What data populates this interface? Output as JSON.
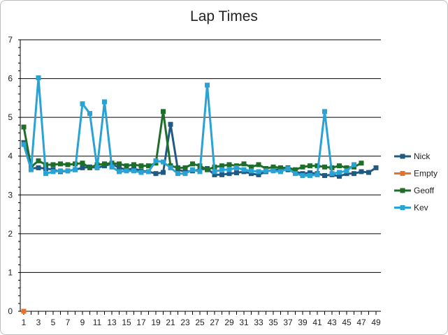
{
  "chart_data": {
    "type": "line",
    "title": "Lap Times",
    "xlabel": "",
    "ylabel": "",
    "ylim": [
      0,
      7
    ],
    "yticks": [
      0,
      1,
      2,
      3,
      4,
      5,
      6,
      7
    ],
    "xlim": [
      1,
      49
    ],
    "xticks": [
      1,
      3,
      5,
      7,
      9,
      11,
      13,
      15,
      17,
      19,
      21,
      23,
      25,
      27,
      29,
      31,
      33,
      35,
      37,
      39,
      41,
      43,
      45,
      47,
      49
    ],
    "grid": "horizontal",
    "legend": "right",
    "series": [
      {
        "name": "Nick",
        "color": "#1f5a82",
        "x": [
          1,
          2,
          3,
          4,
          5,
          6,
          7,
          8,
          9,
          10,
          11,
          12,
          13,
          14,
          15,
          16,
          17,
          18,
          19,
          20,
          21,
          22,
          23,
          24,
          25,
          26,
          27,
          28,
          29,
          30,
          31,
          32,
          33,
          34,
          35,
          36,
          37,
          38,
          39,
          40,
          41,
          42,
          43,
          44,
          45,
          46,
          47,
          48,
          49
        ],
        "y": [
          4.35,
          3.68,
          3.7,
          3.68,
          3.65,
          3.6,
          3.62,
          3.65,
          3.7,
          3.72,
          3.7,
          3.75,
          3.8,
          3.7,
          3.65,
          3.68,
          3.62,
          3.6,
          3.55,
          3.58,
          4.82,
          3.65,
          3.6,
          3.62,
          3.65,
          3.68,
          3.52,
          3.52,
          3.55,
          3.57,
          3.6,
          3.55,
          3.52,
          3.6,
          3.65,
          3.65,
          3.65,
          3.6,
          3.55,
          3.57,
          3.55,
          3.5,
          3.52,
          3.48,
          3.55,
          3.55,
          3.6,
          3.58,
          3.7
        ]
      },
      {
        "name": "Empty",
        "color": "#e8722a",
        "x": [
          1
        ],
        "y": [
          0
        ]
      },
      {
        "name": "Geoff",
        "color": "#1e6e2a",
        "x": [
          1,
          2,
          3,
          4,
          5,
          6,
          7,
          8,
          9,
          10,
          11,
          12,
          13,
          14,
          15,
          16,
          17,
          18,
          19,
          20,
          21,
          22,
          23,
          24,
          25,
          26,
          27,
          28,
          29,
          30,
          31,
          32,
          33,
          34,
          35,
          36,
          37,
          38,
          39,
          40,
          41,
          42,
          43,
          44,
          45,
          46,
          47
        ],
        "y": [
          4.75,
          3.72,
          3.88,
          3.78,
          3.78,
          3.8,
          3.78,
          3.8,
          3.82,
          3.7,
          3.78,
          3.8,
          3.82,
          3.8,
          3.75,
          3.78,
          3.75,
          3.75,
          3.82,
          5.15,
          3.75,
          3.7,
          3.7,
          3.8,
          3.75,
          3.65,
          3.72,
          3.75,
          3.78,
          3.75,
          3.8,
          3.72,
          3.78,
          3.68,
          3.72,
          3.7,
          3.7,
          3.65,
          3.72,
          3.75,
          3.75,
          3.72,
          3.7,
          3.75,
          3.7,
          3.72,
          3.82
        ]
      },
      {
        "name": "Kev",
        "color": "#2aa2d4",
        "x": [
          1,
          2,
          3,
          4,
          5,
          6,
          7,
          8,
          9,
          10,
          11,
          12,
          13,
          14,
          15,
          16,
          17,
          18,
          19,
          20,
          21,
          22,
          23,
          24,
          25,
          26,
          27,
          28,
          29,
          30,
          31,
          32,
          33,
          34,
          35,
          36,
          37,
          38,
          39,
          40,
          41,
          42,
          43,
          44,
          45,
          46
        ],
        "y": [
          4.3,
          3.65,
          6.02,
          3.55,
          3.6,
          3.62,
          3.62,
          3.65,
          5.35,
          5.1,
          3.7,
          5.4,
          3.72,
          3.6,
          3.62,
          3.62,
          3.58,
          3.6,
          3.88,
          3.85,
          3.7,
          3.55,
          3.55,
          3.65,
          3.6,
          5.83,
          3.6,
          3.65,
          3.65,
          3.7,
          3.65,
          3.62,
          3.6,
          3.62,
          3.62,
          3.6,
          3.68,
          3.55,
          3.5,
          3.5,
          3.52,
          5.15,
          3.55,
          3.58,
          3.62,
          3.78
        ]
      }
    ]
  }
}
